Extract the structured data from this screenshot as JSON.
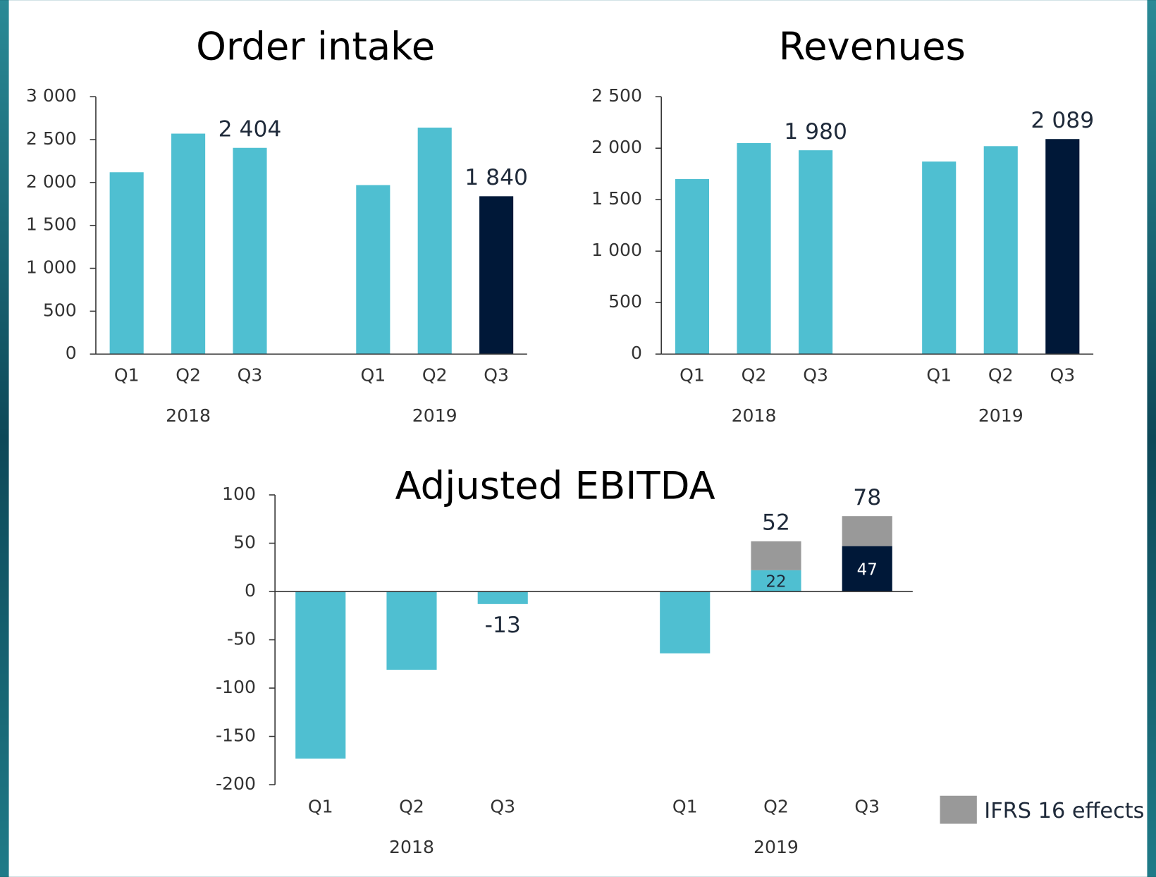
{
  "chart_data": [
    {
      "type": "bar",
      "title": "Order intake",
      "categories": [
        "Q1",
        "Q2",
        "Q3",
        "Q1",
        "Q2",
        "Q3"
      ],
      "group_labels": [
        "2018",
        "2019"
      ],
      "values": [
        2120,
        2570,
        2404,
        1970,
        2640,
        1840
      ],
      "value_labels": [
        null,
        null,
        "2 404",
        null,
        null,
        "1 840"
      ],
      "colors": [
        "#4fbfd1",
        "#4fbfd1",
        "#4fbfd1",
        "#4fbfd1",
        "#4fbfd1",
        "#001838"
      ],
      "ylim": [
        0,
        3000
      ],
      "yticks": [
        0,
        500,
        {
          "value": 1000,
          "label": "1 000"
        },
        {
          "value": 1500,
          "label": "1 500"
        },
        {
          "value": 2000,
          "label": "2 000"
        },
        {
          "value": 2500,
          "label": "2 500"
        },
        {
          "value": 3000,
          "label": "3 000"
        }
      ]
    },
    {
      "type": "bar",
      "title": "Revenues",
      "categories": [
        "Q1",
        "Q2",
        "Q3",
        "Q1",
        "Q2",
        "Q3"
      ],
      "group_labels": [
        "2018",
        "2019"
      ],
      "values": [
        1700,
        2050,
        1980,
        1870,
        2020,
        2089
      ],
      "value_labels": [
        null,
        null,
        "1 980",
        null,
        null,
        "2 089"
      ],
      "colors": [
        "#4fbfd1",
        "#4fbfd1",
        "#4fbfd1",
        "#4fbfd1",
        "#4fbfd1",
        "#001838"
      ],
      "ylim": [
        0,
        2500
      ],
      "yticks": [
        0,
        500,
        {
          "value": 1000,
          "label": "1 000"
        },
        {
          "value": 1500,
          "label": "1 500"
        },
        {
          "value": 2000,
          "label": "2 000"
        },
        {
          "value": 2500,
          "label": "2 500"
        }
      ]
    },
    {
      "type": "stacked_bar",
      "title": "Adjusted EBITDA",
      "categories": [
        "Q1",
        "Q2",
        "Q3",
        "Q1",
        "Q2",
        "Q3"
      ],
      "group_labels": [
        "2018",
        "2019"
      ],
      "series": [
        {
          "values": [
            -173,
            -81,
            -13,
            -64,
            22,
            47
          ],
          "show_labels": [
            false,
            false,
            true,
            false,
            true,
            true
          ],
          "colors": [
            "#4fbfd1",
            "#4fbfd1",
            "#4fbfd1",
            "#4fbfd1",
            "#4fbfd1",
            "#001838"
          ]
        },
        {
          "name": "IFRS 16 effects",
          "color": "#999999",
          "values": [
            null,
            null,
            null,
            null,
            30,
            31
          ]
        }
      ],
      "totals": [
        null,
        null,
        null,
        null,
        52,
        78
      ],
      "legend": "bottom-right",
      "ylim": [
        -200,
        100
      ],
      "yticks": [
        -200,
        -150,
        -100,
        -50,
        0,
        50,
        100
      ]
    }
  ]
}
